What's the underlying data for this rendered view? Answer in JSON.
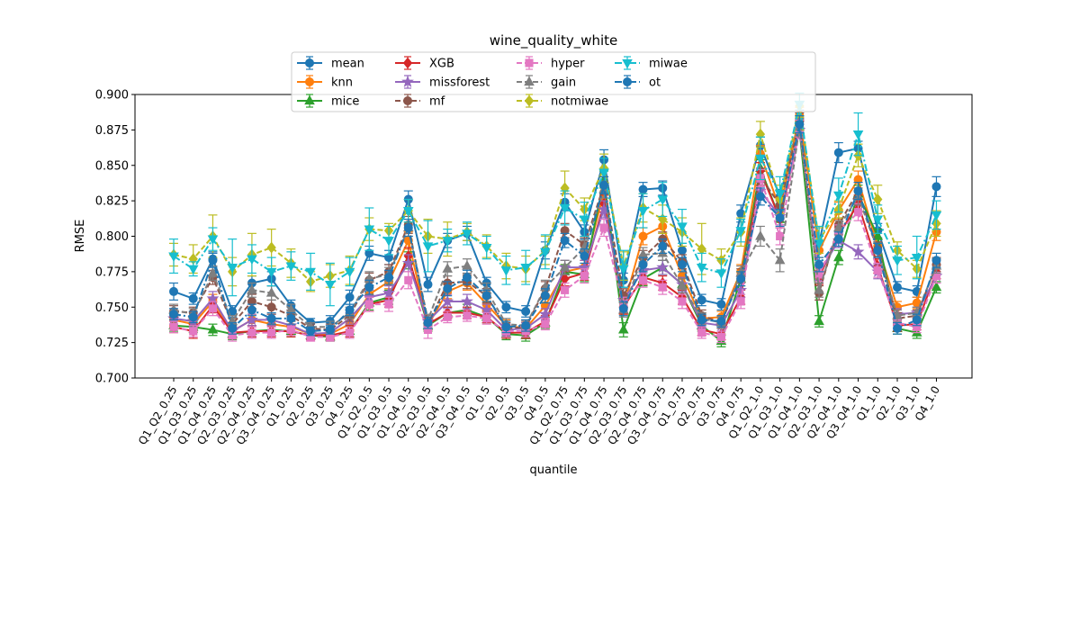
{
  "chart_data": {
    "type": "line",
    "title": "wine_quality_white",
    "xlabel": "quantile",
    "ylabel": "RMSE",
    "ylim": [
      0.7,
      0.9
    ],
    "yticks": [
      0.7,
      0.725,
      0.75,
      0.775,
      0.8,
      0.825,
      0.85,
      0.875,
      0.9
    ],
    "ytick_labels": [
      "0.700",
      "0.725",
      "0.750",
      "0.775",
      "0.800",
      "0.825",
      "0.850",
      "0.875",
      "0.900"
    ],
    "grid": false,
    "legend_position": "top-center",
    "categories": [
      "Q1_Q2_0.25",
      "Q1_Q3_0.25",
      "Q1_Q4_0.25",
      "Q2_Q3_0.25",
      "Q2_Q4_0.25",
      "Q3_Q4_0.25",
      "Q1_0.25",
      "Q2_0.25",
      "Q3_0.25",
      "Q4_0.25",
      "Q1_Q2_0.5",
      "Q1_Q3_0.5",
      "Q1_Q4_0.5",
      "Q2_Q3_0.5",
      "Q2_Q4_0.5",
      "Q3_Q4_0.5",
      "Q1_0.5",
      "Q2_0.5",
      "Q3_0.5",
      "Q4_0.5",
      "Q1_Q2_0.75",
      "Q1_Q3_0.75",
      "Q1_Q4_0.75",
      "Q2_Q3_0.75",
      "Q2_Q4_0.75",
      "Q3_Q4_0.75",
      "Q1_0.75",
      "Q2_0.75",
      "Q3_0.75",
      "Q4_0.75",
      "Q1_Q2_1.0",
      "Q1_Q3_1.0",
      "Q1_Q4_1.0",
      "Q2_Q3_1.0",
      "Q2_Q4_1.0",
      "Q3_Q4_1.0",
      "Q1_1.0",
      "Q2_1.0",
      "Q3_1.0",
      "Q4_1.0"
    ],
    "series": [
      {
        "name": "mean",
        "color": "#1f77b4",
        "marker": "circle",
        "dash": "solid",
        "values": [
          0.761,
          0.756,
          0.784,
          0.747,
          0.767,
          0.77,
          0.751,
          0.739,
          0.74,
          0.757,
          0.788,
          0.785,
          0.826,
          0.766,
          0.797,
          0.802,
          0.767,
          0.75,
          0.747,
          0.79,
          0.824,
          0.803,
          0.854,
          0.769,
          0.833,
          0.834,
          0.79,
          0.755,
          0.752,
          0.816,
          0.864,
          0.828,
          0.883,
          0.795,
          0.859,
          0.862,
          0.804,
          0.764,
          0.761,
          0.835
        ],
        "err": [
          0.006,
          0.004,
          0.005,
          0.004,
          0.005,
          0.005,
          0.004,
          0.003,
          0.004,
          0.005,
          0.005,
          0.005,
          0.006,
          0.005,
          0.005,
          0.005,
          0.004,
          0.004,
          0.004,
          0.006,
          0.006,
          0.005,
          0.007,
          0.005,
          0.005,
          0.005,
          0.005,
          0.004,
          0.004,
          0.006,
          0.006,
          0.005,
          0.006,
          0.005,
          0.007,
          0.005,
          0.005,
          0.004,
          0.004,
          0.007
        ]
      },
      {
        "name": "knn",
        "color": "#ff7f0e",
        "marker": "circle",
        "dash": "solid",
        "values": [
          0.741,
          0.738,
          0.754,
          0.733,
          0.741,
          0.738,
          0.736,
          0.731,
          0.731,
          0.738,
          0.759,
          0.768,
          0.797,
          0.737,
          0.761,
          0.767,
          0.752,
          0.737,
          0.735,
          0.751,
          0.775,
          0.778,
          0.831,
          0.75,
          0.8,
          0.807,
          0.772,
          0.742,
          0.743,
          0.775,
          0.858,
          0.819,
          0.885,
          0.79,
          0.818,
          0.84,
          0.793,
          0.75,
          0.753,
          0.803
        ],
        "err": [
          0.004,
          0.004,
          0.005,
          0.004,
          0.004,
          0.004,
          0.004,
          0.003,
          0.003,
          0.004,
          0.005,
          0.005,
          0.006,
          0.004,
          0.005,
          0.005,
          0.004,
          0.004,
          0.004,
          0.005,
          0.005,
          0.005,
          0.006,
          0.005,
          0.006,
          0.005,
          0.005,
          0.004,
          0.004,
          0.005,
          0.006,
          0.006,
          0.006,
          0.005,
          0.006,
          0.006,
          0.005,
          0.004,
          0.004,
          0.006
        ]
      },
      {
        "name": "mice",
        "color": "#2ca02c",
        "marker": "triangle-up",
        "dash": "solid",
        "values": [
          0.737,
          0.736,
          0.734,
          0.731,
          0.733,
          0.734,
          0.733,
          0.73,
          0.729,
          0.733,
          0.753,
          0.757,
          0.783,
          0.737,
          0.746,
          0.748,
          0.743,
          0.731,
          0.73,
          0.739,
          0.775,
          0.773,
          0.84,
          0.734,
          0.77,
          0.778,
          0.766,
          0.737,
          0.726,
          0.77,
          0.848,
          0.812,
          0.875,
          0.74,
          0.785,
          0.83,
          0.8,
          0.735,
          0.732,
          0.764
        ],
        "err": [
          0.004,
          0.004,
          0.004,
          0.004,
          0.004,
          0.004,
          0.004,
          0.003,
          0.003,
          0.004,
          0.005,
          0.005,
          0.006,
          0.004,
          0.004,
          0.004,
          0.004,
          0.004,
          0.004,
          0.004,
          0.005,
          0.005,
          0.006,
          0.005,
          0.005,
          0.005,
          0.005,
          0.004,
          0.004,
          0.005,
          0.006,
          0.006,
          0.006,
          0.004,
          0.005,
          0.006,
          0.005,
          0.004,
          0.004,
          0.004
        ]
      },
      {
        "name": "XGB",
        "color": "#d62728",
        "marker": "diamond",
        "dash": "solid",
        "values": [
          0.736,
          0.733,
          0.751,
          0.732,
          0.733,
          0.733,
          0.733,
          0.73,
          0.73,
          0.733,
          0.752,
          0.755,
          0.786,
          0.738,
          0.746,
          0.746,
          0.743,
          0.732,
          0.732,
          0.74,
          0.77,
          0.774,
          0.823,
          0.75,
          0.771,
          0.767,
          0.757,
          0.734,
          0.731,
          0.757,
          0.846,
          0.812,
          0.876,
          0.771,
          0.801,
          0.823,
          0.779,
          0.737,
          0.738,
          0.775
        ],
        "err": [
          0.004,
          0.005,
          0.005,
          0.004,
          0.004,
          0.004,
          0.004,
          0.003,
          0.003,
          0.004,
          0.005,
          0.005,
          0.006,
          0.004,
          0.004,
          0.004,
          0.004,
          0.004,
          0.004,
          0.004,
          0.005,
          0.005,
          0.006,
          0.005,
          0.005,
          0.005,
          0.005,
          0.004,
          0.004,
          0.005,
          0.006,
          0.006,
          0.006,
          0.005,
          0.005,
          0.006,
          0.005,
          0.004,
          0.004,
          0.005
        ]
      },
      {
        "name": "missforest",
        "color": "#9467bd",
        "marker": "star",
        "dash": "solid",
        "values": [
          0.742,
          0.74,
          0.756,
          0.733,
          0.741,
          0.741,
          0.737,
          0.731,
          0.732,
          0.742,
          0.757,
          0.76,
          0.781,
          0.74,
          0.754,
          0.754,
          0.748,
          0.734,
          0.735,
          0.745,
          0.778,
          0.778,
          0.819,
          0.755,
          0.776,
          0.778,
          0.766,
          0.739,
          0.737,
          0.762,
          0.832,
          0.814,
          0.875,
          0.774,
          0.797,
          0.789,
          0.775,
          0.745,
          0.746,
          0.772
        ],
        "err": [
          0.004,
          0.004,
          0.005,
          0.004,
          0.004,
          0.004,
          0.004,
          0.003,
          0.003,
          0.004,
          0.005,
          0.005,
          0.006,
          0.004,
          0.005,
          0.005,
          0.004,
          0.004,
          0.004,
          0.004,
          0.005,
          0.005,
          0.006,
          0.005,
          0.005,
          0.005,
          0.005,
          0.004,
          0.004,
          0.005,
          0.006,
          0.006,
          0.006,
          0.005,
          0.005,
          0.005,
          0.005,
          0.004,
          0.004,
          0.005
        ]
      },
      {
        "name": "mf",
        "color": "#8c564b",
        "marker": "circle",
        "dash": "dashed",
        "values": [
          0.747,
          0.746,
          0.771,
          0.738,
          0.754,
          0.75,
          0.744,
          0.735,
          0.734,
          0.744,
          0.769,
          0.775,
          0.808,
          0.738,
          0.767,
          0.768,
          0.758,
          0.735,
          0.736,
          0.763,
          0.804,
          0.794,
          0.836,
          0.758,
          0.785,
          0.798,
          0.782,
          0.744,
          0.739,
          0.772,
          0.842,
          0.822,
          0.881,
          0.76,
          0.808,
          0.832,
          0.791,
          0.742,
          0.744,
          0.78
        ],
        "err": [
          0.004,
          0.004,
          0.005,
          0.004,
          0.005,
          0.005,
          0.004,
          0.003,
          0.004,
          0.004,
          0.005,
          0.005,
          0.006,
          0.004,
          0.005,
          0.005,
          0.005,
          0.004,
          0.004,
          0.005,
          0.005,
          0.005,
          0.006,
          0.005,
          0.005,
          0.005,
          0.005,
          0.004,
          0.004,
          0.005,
          0.006,
          0.006,
          0.006,
          0.005,
          0.005,
          0.006,
          0.005,
          0.004,
          0.004,
          0.005
        ]
      },
      {
        "name": "hyper",
        "color": "#e377c2",
        "marker": "square",
        "dash": "dashed",
        "values": [
          0.736,
          0.733,
          0.749,
          0.73,
          0.732,
          0.732,
          0.734,
          0.729,
          0.729,
          0.732,
          0.752,
          0.752,
          0.769,
          0.734,
          0.743,
          0.744,
          0.742,
          0.733,
          0.733,
          0.738,
          0.762,
          0.772,
          0.806,
          0.752,
          0.769,
          0.764,
          0.754,
          0.732,
          0.729,
          0.754,
          0.841,
          0.8,
          0.876,
          0.773,
          0.803,
          0.817,
          0.776,
          0.739,
          0.736,
          0.772
        ],
        "err": [
          0.004,
          0.004,
          0.005,
          0.004,
          0.004,
          0.004,
          0.004,
          0.003,
          0.003,
          0.004,
          0.005,
          0.005,
          0.006,
          0.006,
          0.004,
          0.004,
          0.004,
          0.004,
          0.004,
          0.004,
          0.005,
          0.005,
          0.006,
          0.005,
          0.005,
          0.005,
          0.005,
          0.004,
          0.004,
          0.005,
          0.006,
          0.006,
          0.006,
          0.005,
          0.005,
          0.006,
          0.005,
          0.004,
          0.004,
          0.005
        ]
      },
      {
        "name": "gain",
        "color": "#7f7f7f",
        "marker": "triangle-up",
        "dash": "dashed",
        "values": [
          0.748,
          0.745,
          0.774,
          0.74,
          0.762,
          0.76,
          0.748,
          0.736,
          0.736,
          0.746,
          0.77,
          0.773,
          0.806,
          0.741,
          0.777,
          0.779,
          0.762,
          0.738,
          0.737,
          0.764,
          0.778,
          0.792,
          0.833,
          0.748,
          0.787,
          0.788,
          0.765,
          0.742,
          0.739,
          0.774,
          0.8,
          0.783,
          0.877,
          0.762,
          0.806,
          0.828,
          0.79,
          0.744,
          0.746,
          0.779
        ],
        "err": [
          0.004,
          0.004,
          0.005,
          0.004,
          0.005,
          0.005,
          0.004,
          0.003,
          0.004,
          0.004,
          0.005,
          0.005,
          0.006,
          0.004,
          0.005,
          0.005,
          0.005,
          0.004,
          0.004,
          0.005,
          0.005,
          0.005,
          0.006,
          0.005,
          0.005,
          0.005,
          0.005,
          0.004,
          0.004,
          0.005,
          0.007,
          0.008,
          0.006,
          0.005,
          0.005,
          0.006,
          0.005,
          0.004,
          0.004,
          0.005
        ]
      },
      {
        "name": "notmiwae",
        "color": "#bcbd22",
        "marker": "diamond",
        "dash": "dashed",
        "values": [
          0.787,
          0.784,
          0.8,
          0.775,
          0.787,
          0.792,
          0.781,
          0.768,
          0.772,
          0.776,
          0.805,
          0.804,
          0.818,
          0.8,
          0.798,
          0.803,
          0.793,
          0.779,
          0.777,
          0.79,
          0.834,
          0.819,
          0.848,
          0.779,
          0.82,
          0.812,
          0.803,
          0.791,
          0.783,
          0.803,
          0.872,
          0.826,
          0.892,
          0.797,
          0.819,
          0.857,
          0.826,
          0.79,
          0.777,
          0.809
        ],
        "err": [
          0.008,
          0.01,
          0.015,
          0.01,
          0.015,
          0.013,
          0.01,
          0.007,
          0.008,
          0.01,
          0.008,
          0.005,
          0.008,
          0.012,
          0.012,
          0.006,
          0.008,
          0.009,
          0.009,
          0.01,
          0.012,
          0.008,
          0.01,
          0.01,
          0.01,
          0.01,
          0.01,
          0.018,
          0.008,
          0.01,
          0.009,
          0.01,
          0.008,
          0.009,
          0.006,
          0.008,
          0.01,
          0.006,
          0.006,
          0.009
        ]
      },
      {
        "name": "miwae",
        "color": "#17becf",
        "marker": "triangle-down",
        "dash": "dashdot",
        "values": [
          0.786,
          0.777,
          0.798,
          0.778,
          0.784,
          0.775,
          0.779,
          0.775,
          0.766,
          0.775,
          0.805,
          0.797,
          0.818,
          0.793,
          0.797,
          0.802,
          0.792,
          0.776,
          0.778,
          0.789,
          0.82,
          0.812,
          0.845,
          0.777,
          0.818,
          0.826,
          0.807,
          0.778,
          0.774,
          0.804,
          0.855,
          0.83,
          0.893,
          0.795,
          0.829,
          0.872,
          0.812,
          0.783,
          0.785,
          0.815
        ],
        "err": [
          0.012,
          0.005,
          0.008,
          0.02,
          0.01,
          0.01,
          0.01,
          0.013,
          0.015,
          0.01,
          0.015,
          0.01,
          0.008,
          0.018,
          0.008,
          0.008,
          0.008,
          0.01,
          0.012,
          0.012,
          0.012,
          0.012,
          0.01,
          0.013,
          0.012,
          0.012,
          0.012,
          0.01,
          0.01,
          0.008,
          0.015,
          0.012,
          0.008,
          0.012,
          0.012,
          0.015,
          0.01,
          0.01,
          0.015,
          0.01
        ]
      },
      {
        "name": "ot",
        "color": "#1f77b4",
        "marker": "circle",
        "dash": "dashdot",
        "values": [
          0.745,
          0.743,
          0.783,
          0.735,
          0.748,
          0.742,
          0.742,
          0.733,
          0.734,
          0.748,
          0.764,
          0.771,
          0.806,
          0.739,
          0.763,
          0.771,
          0.758,
          0.736,
          0.737,
          0.758,
          0.797,
          0.786,
          0.836,
          0.749,
          0.78,
          0.793,
          0.78,
          0.741,
          0.74,
          0.77,
          0.828,
          0.813,
          0.879,
          0.78,
          0.798,
          0.832,
          0.79,
          0.735,
          0.741,
          0.783
        ],
        "err": [
          0.004,
          0.004,
          0.005,
          0.004,
          0.004,
          0.004,
          0.004,
          0.003,
          0.003,
          0.004,
          0.005,
          0.005,
          0.006,
          0.004,
          0.005,
          0.005,
          0.004,
          0.004,
          0.004,
          0.005,
          0.005,
          0.005,
          0.006,
          0.005,
          0.005,
          0.005,
          0.005,
          0.004,
          0.004,
          0.005,
          0.006,
          0.006,
          0.006,
          0.005,
          0.005,
          0.006,
          0.005,
          0.004,
          0.004,
          0.005
        ]
      }
    ]
  }
}
